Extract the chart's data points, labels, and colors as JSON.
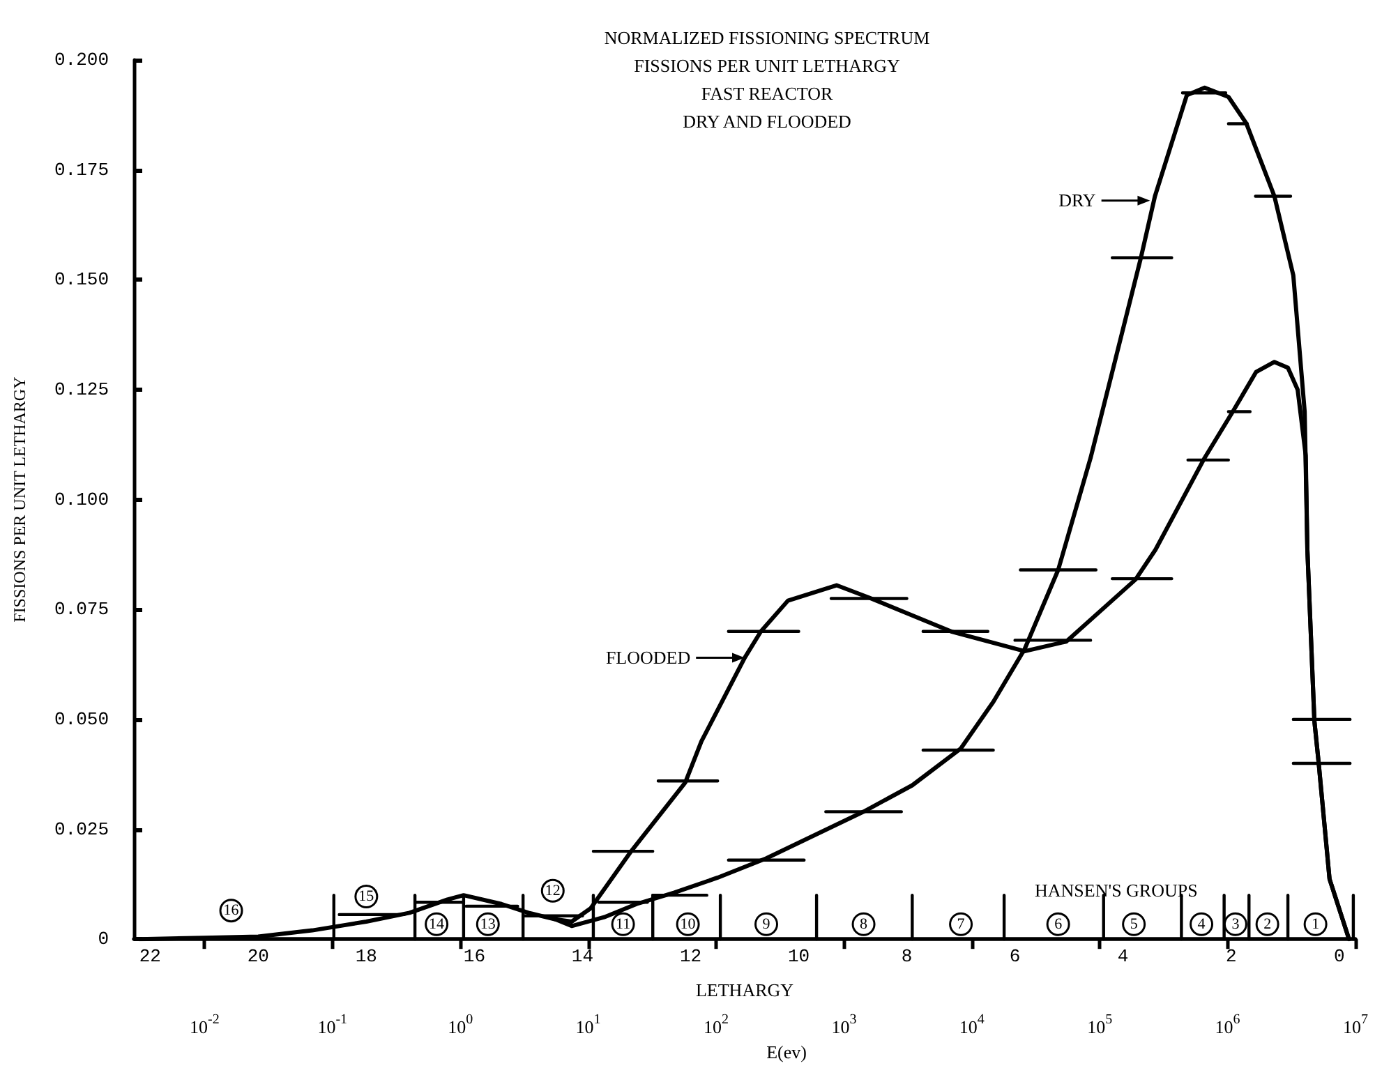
{
  "chart_data": {
    "type": "line",
    "title": "NORMALIZED FISSIONING SPECTRUM",
    "subtitle": "FISSIONS PER UNIT LETHARGY\nFAST REACTOR\nDRY AND FLOODED",
    "xlabel": "LETHARGY",
    "ylabel": "FISSIONS PER UNIT LETHARGY",
    "x2label": "E(ev)",
    "xlim": [
      22.3,
      -0.3
    ],
    "xticks": [
      22,
      20,
      18,
      16,
      14,
      12,
      10,
      8,
      6,
      4,
      2,
      0
    ],
    "x2lim": [
      0.0028,
      10000000
    ],
    "x2ticks": [
      {
        "value": 0.01,
        "label": "10$^{-2}$"
      },
      {
        "value": 0.1,
        "label": "10$^{-1}$"
      },
      {
        "value": 1,
        "label": "10$^{0}$"
      },
      {
        "value": 10,
        "label": "10$^{1}$"
      },
      {
        "value": 100,
        "label": "10$^{2}$"
      },
      {
        "value": 1000,
        "label": "10$^{3}$"
      },
      {
        "value": 10000,
        "label": "10$^{4}$"
      },
      {
        "value": 100000,
        "label": "10$^{5}$"
      },
      {
        "value": 1000000,
        "label": "10$^{6}$"
      },
      {
        "value": 10000000,
        "label": "10$^{7}$"
      }
    ],
    "ylim": [
      0,
      0.2
    ],
    "yticks": [
      0,
      0.025,
      {
        "value": 0.05,
        "label": "0.050"
      },
      0.075,
      {
        "value": 0.1,
        "label": "0.100"
      },
      0.125,
      {
        "value": 0.15,
        "label": "0.150"
      },
      0.175,
      {
        "value": 0.2,
        "label": "0.200"
      }
    ],
    "log": "x2",
    "grid": false,
    "marker": "none",
    "line_style": "solid",
    "series": [
      {
        "type": "line",
        "color": "#000000",
        "x": [
          22.2,
          21,
          20,
          19,
          18,
          17.2,
          16.5,
          16.2,
          15.5,
          15,
          14.5,
          14.2,
          13.6,
          13,
          12.3,
          11.5,
          10.6,
          8.8,
          7.9,
          7.0,
          6.4,
          5.82,
          5.2,
          4.6,
          4.18,
          3.67,
          3.41,
          2.82,
          2.49,
          2.05,
          1.72,
          1.2,
          0.85,
          0.64,
          0.59,
          0.46,
          0.38,
          0.18,
          -0.18
        ],
        "values": [
          0,
          0.0003,
          0.0006,
          0.002,
          0.004,
          0.006,
          0.009,
          0.01,
          0.008,
          0.006,
          0.0045,
          0.003,
          0.005,
          0.008,
          0.0106,
          0.014,
          0.0184,
          0.029,
          0.035,
          0.0434,
          0.054,
          0.066,
          0.084,
          0.1095,
          0.13,
          0.155,
          0.169,
          0.192,
          0.1937,
          0.1916,
          0.1856,
          0.169,
          0.151,
          0.12,
          0.0886,
          0.0496,
          0.04,
          0.0137,
          0
        ]
      },
      {
        "type": "line",
        "color": "#000000",
        "x": [
          14.5,
          14.2,
          13.85,
          13.1,
          12.1,
          11.8,
          11.0,
          10.7,
          10.2,
          9.3,
          8.7,
          7.18,
          5.82,
          5.05,
          3.77,
          3.4,
          2.49,
          1.97,
          1.54,
          1.2,
          0.95,
          0.77,
          0.62,
          0.59,
          0.46,
          0.38,
          0.18,
          -0.18
        ],
        "values": [
          0.0045,
          0.004,
          0.007,
          0.02,
          0.0356,
          0.045,
          0.064,
          0.07,
          0.077,
          0.0805,
          0.0777,
          0.07,
          0.0655,
          0.0677,
          0.0818,
          0.0886,
          0.1095,
          0.12,
          0.129,
          0.1313,
          0.13,
          0.125,
          0.11,
          0.0886,
          0.0496,
          0.04,
          0.0137,
          0
        ]
      },
      {
        "type": "line",
        "color": "#000000",
        "x": [
          18.5,
          17.3,
          null,
          17.1,
          16.2,
          null,
          16.15,
          15.2,
          null,
          15.1,
          14.0,
          null,
          13.7,
          12.8,
          null,
          12.7,
          11.7,
          null,
          11.3,
          9.9,
          null,
          9.5,
          8.1,
          null,
          7.7,
          6.4,
          null,
          5.9,
          4.5,
          null,
          4.2,
          3.1,
          null,
          2.9,
          2.1,
          null,
          2.05,
          1.7,
          null,
          1.55,
          0.9,
          null,
          0.85,
          -0.2
        ],
        "values": [
          0.0056,
          0.0056,
          null,
          0.0084,
          0.0084,
          null,
          0.0075,
          0.0075,
          null,
          0.0053,
          0.0053,
          null,
          0.0084,
          0.0084,
          null,
          0.01,
          0.01,
          null,
          0.018,
          0.018,
          null,
          0.029,
          0.029,
          null,
          0.043,
          0.043,
          null,
          0.084,
          0.084,
          null,
          0.155,
          0.155,
          null,
          0.1925,
          0.1925,
          null,
          0.1855,
          0.1855,
          null,
          0.169,
          0.169,
          null,
          0.05,
          0.05
        ]
      },
      {
        "type": "line",
        "color": "#000000",
        "x": [
          13.8,
          12.7,
          null,
          12.6,
          11.5,
          null,
          11.3,
          10.0,
          null,
          9.4,
          8.0,
          null,
          7.7,
          6.5,
          null,
          6.0,
          4.6,
          null,
          4.2,
          3.1,
          null,
          2.8,
          2.05,
          null,
          2.05,
          1.65,
          null,
          0.85,
          -0.2
        ],
        "values": [
          0.02,
          0.02,
          null,
          0.036,
          0.036,
          null,
          0.07,
          0.07,
          null,
          0.0775,
          0.0775,
          null,
          0.07,
          0.07,
          null,
          0.068,
          0.068,
          null,
          0.082,
          0.082,
          null,
          0.109,
          0.109,
          null,
          0.12,
          0.12,
          null,
          0.04,
          0.04
        ]
      },
      {
        "type": "line",
        "color": "#000000",
        "x": [
          18.6,
          18.6,
          null,
          17.1,
          17.1,
          null,
          16.2,
          16.2,
          null,
          15.1,
          15.1,
          null,
          13.8,
          13.8,
          null,
          12.7,
          12.7,
          null,
          11.45,
          11.45,
          null,
          9.67,
          9.67,
          null,
          7.9,
          7.9,
          null,
          6.2,
          6.2,
          null,
          4.36,
          4.36,
          null,
          2.92,
          2.92,
          null,
          2.13,
          2.13,
          null,
          1.67,
          1.67,
          null,
          0.95,
          0.95,
          null,
          -0.26,
          -0.26
        ],
        "values": [
          0,
          0.01,
          null,
          0,
          0.01,
          null,
          0,
          0.01,
          null,
          0,
          0.01,
          null,
          0,
          0.01,
          null,
          0,
          0.01,
          null,
          0,
          0.01,
          null,
          0,
          0.01,
          null,
          0,
          0.01,
          null,
          0,
          0.01,
          null,
          0,
          0.01,
          null,
          0,
          0.01,
          null,
          0,
          0.01,
          null,
          0,
          0.01,
          null,
          0,
          0.01,
          null,
          0,
          0.01
        ]
      }
    ],
    "annotations": [
      {
        "text": "16",
        "x": 20.5,
        "y": 0.0065
      },
      {
        "text": "15",
        "x": 18.0,
        "y": 0.0097
      },
      {
        "text": "14",
        "x": 16.7,
        "y": 0.0034
      },
      {
        "text": "13",
        "x": 15.75,
        "y": 0.0034
      },
      {
        "text": "12",
        "x": 14.55,
        "y": 0.011
      },
      {
        "text": "11",
        "x": 13.25,
        "y": 0.0034
      },
      {
        "text": "10",
        "x": 12.05,
        "y": 0.0034
      },
      {
        "text": "9",
        "x": 10.6,
        "y": 0.0034
      },
      {
        "text": "8",
        "x": 8.8,
        "y": 0.0034
      },
      {
        "text": "7",
        "x": 7.0,
        "y": 0.0034
      },
      {
        "text": "6",
        "x": 5.2,
        "y": 0.0034
      },
      {
        "text": "5",
        "x": 3.8,
        "y": 0.0034
      },
      {
        "text": "4",
        "x": 2.55,
        "y": 0.0034
      },
      {
        "text": "3",
        "x": 1.92,
        "y": 0.0034
      },
      {
        "text": "2",
        "x": 1.33,
        "y": 0.0034
      },
      {
        "text": "1",
        "x": 0.44,
        "y": 0.0034
      },
      {
        "text": "DRY",
        "x": 3.5,
        "y": 0.168
      },
      {
        "text": "FLOODED",
        "x": 11.0,
        "y": 0.064
      },
      "HANSEN'S GROUPS"
    ]
  }
}
